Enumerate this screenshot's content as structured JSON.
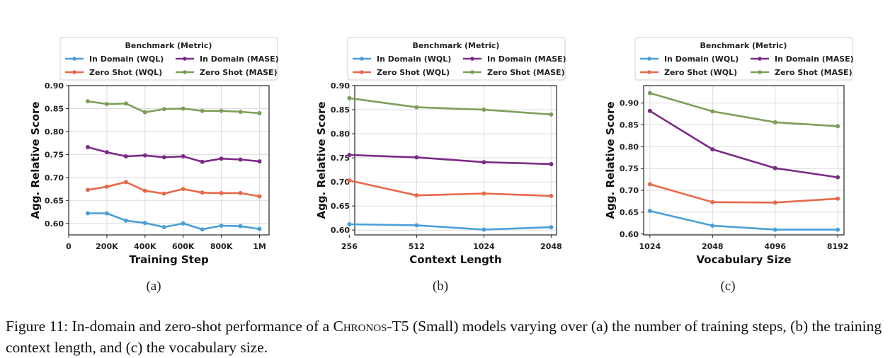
{
  "legend": {
    "title": "Benchmark (Metric)",
    "series_names": [
      "In Domain (WQL)",
      "In Domain (MASE)",
      "Zero Shot (WQL)",
      "Zero Shot (MASE)"
    ]
  },
  "colors": {
    "in_domain_wql": "#4a9fd8",
    "in_domain_mase": "#7b2a86",
    "zero_shot_wql": "#e8694a",
    "zero_shot_mase": "#7e9e5a"
  },
  "panel_labels": [
    "(a)",
    "(b)",
    "(c)"
  ],
  "caption": {
    "prefix": "Figure 11: In-domain and zero-shot performance of a ",
    "model": "Chronos-T5",
    "suffix": " (Small) models varying over (a) the number of training steps, (b) the training context length, and (c) the vocabulary size."
  },
  "chart_data": [
    {
      "type": "line",
      "xlabel": "Training Step",
      "ylabel": "Agg. Relative Score",
      "xscale": "linear",
      "xlim": [
        0,
        1050000
      ],
      "ylim": [
        0.575,
        0.9
      ],
      "grid": true,
      "legend_position": "top",
      "x_ticks": [
        0,
        200000,
        400000,
        600000,
        800000,
        1000000
      ],
      "x_tick_labels": [
        "0",
        "200K",
        "400K",
        "600K",
        "800K",
        "1M"
      ],
      "y_ticks": [
        0.6,
        0.65,
        0.7,
        0.75,
        0.8,
        0.85,
        0.9
      ],
      "y_tick_labels": [
        "0.60",
        "0.65",
        "0.70",
        "0.75",
        "0.80",
        "0.85",
        "0.90"
      ],
      "x": [
        100000,
        200000,
        300000,
        400000,
        500000,
        600000,
        700000,
        800000,
        900000,
        1000000
      ],
      "series": [
        {
          "name": "In Domain (WQL)",
          "values": [
            0.622,
            0.622,
            0.606,
            0.601,
            0.592,
            0.6,
            0.587,
            0.595,
            0.594,
            0.588
          ]
        },
        {
          "name": "In Domain (MASE)",
          "values": [
            0.766,
            0.755,
            0.746,
            0.748,
            0.744,
            0.746,
            0.734,
            0.741,
            0.739,
            0.735
          ]
        },
        {
          "name": "Zero Shot (WQL)",
          "values": [
            0.673,
            0.68,
            0.69,
            0.671,
            0.665,
            0.675,
            0.667,
            0.666,
            0.666,
            0.659
          ]
        },
        {
          "name": "Zero Shot (MASE)",
          "values": [
            0.866,
            0.86,
            0.861,
            0.842,
            0.849,
            0.85,
            0.845,
            0.845,
            0.843,
            0.84
          ]
        }
      ]
    },
    {
      "type": "line",
      "xlabel": "Context Length",
      "ylabel": "Agg. Relative Score",
      "xscale": "log2",
      "xlim": [
        0.08,
        3.08
      ],
      "ylim": [
        0.59,
        0.9
      ],
      "grid": true,
      "legend_position": "top",
      "x_ticks": [
        256,
        512,
        1024,
        2048
      ],
      "x_tick_labels": [
        "256",
        "512",
        "1024",
        "2048"
      ],
      "y_ticks": [
        0.6,
        0.65,
        0.7,
        0.75,
        0.8,
        0.85,
        0.9
      ],
      "y_tick_labels": [
        "0.60",
        "0.65",
        "0.70",
        "0.75",
        "0.80",
        "0.85",
        "0.90"
      ],
      "x": [
        256,
        512,
        1024,
        2048
      ],
      "series": [
        {
          "name": "In Domain (WQL)",
          "values": [
            0.612,
            0.61,
            0.601,
            0.606
          ]
        },
        {
          "name": "In Domain (MASE)",
          "values": [
            0.756,
            0.751,
            0.741,
            0.737
          ]
        },
        {
          "name": "Zero Shot (WQL)",
          "values": [
            0.703,
            0.672,
            0.676,
            0.671
          ]
        },
        {
          "name": "Zero Shot (MASE)",
          "values": [
            0.874,
            0.855,
            0.85,
            0.84
          ]
        }
      ]
    },
    {
      "type": "line",
      "xlabel": "Vocabulary Size",
      "ylabel": "Agg. Relative Score",
      "xscale": "log2",
      "xlim": [
        -0.1,
        3.1
      ],
      "ylim": [
        0.598,
        0.94
      ],
      "grid": true,
      "legend_position": "top",
      "x_ticks": [
        1024,
        2048,
        4096,
        8192
      ],
      "x_tick_labels": [
        "1024",
        "2048",
        "4096",
        "8192"
      ],
      "y_ticks": [
        0.6,
        0.65,
        0.7,
        0.75,
        0.8,
        0.85,
        0.9
      ],
      "y_tick_labels": [
        "0.60",
        "0.65",
        "0.70",
        "0.75",
        "0.80",
        "0.85",
        "0.90"
      ],
      "x": [
        1024,
        2048,
        4096,
        8192
      ],
      "series": [
        {
          "name": "In Domain (WQL)",
          "values": [
            0.653,
            0.619,
            0.61,
            0.61
          ]
        },
        {
          "name": "In Domain (MASE)",
          "values": [
            0.882,
            0.794,
            0.751,
            0.73
          ]
        },
        {
          "name": "Zero Shot (WQL)",
          "values": [
            0.714,
            0.673,
            0.672,
            0.681
          ]
        },
        {
          "name": "Zero Shot (MASE)",
          "values": [
            0.923,
            0.881,
            0.856,
            0.847
          ]
        }
      ]
    }
  ]
}
